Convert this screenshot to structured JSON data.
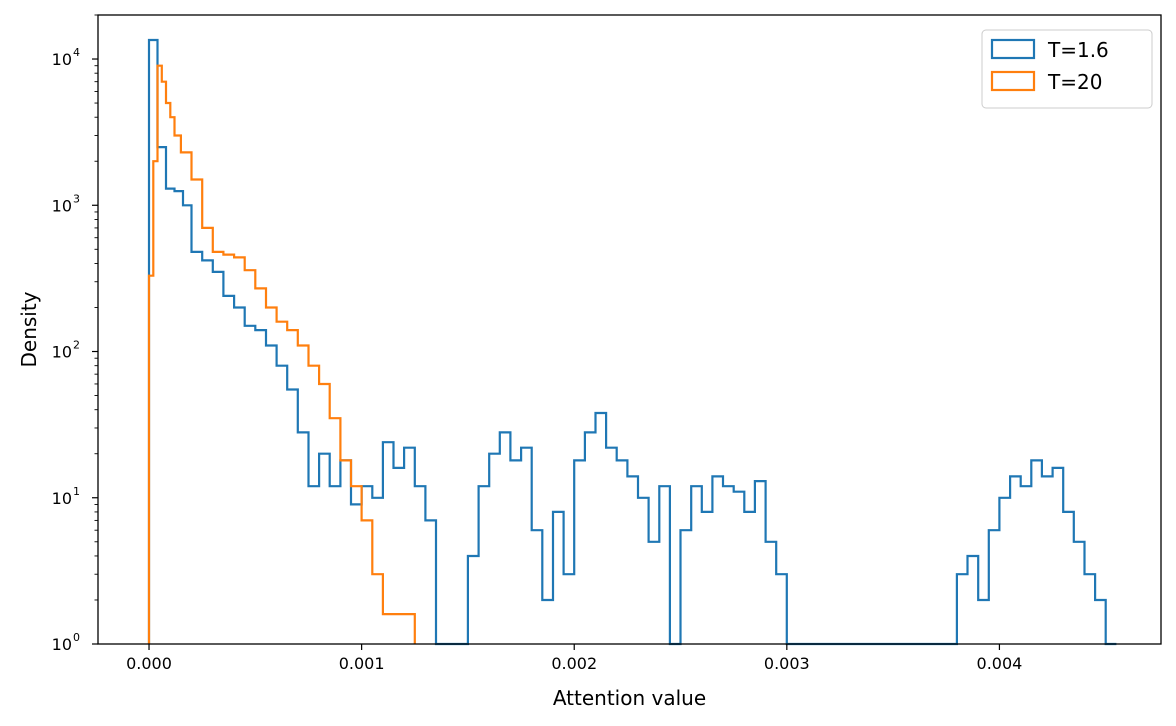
{
  "chart_data": {
    "type": "histogram",
    "xlabel": "Attention value",
    "ylabel": "Density",
    "xlim": [
      -0.00024,
      0.00476
    ],
    "ylim": [
      1,
      20000
    ],
    "y_scale": "log",
    "x_ticks": [
      0.0,
      0.001,
      0.002,
      0.003,
      0.004
    ],
    "x_tick_labels": [
      "0.000",
      "0.001",
      "0.002",
      "0.003",
      "0.004"
    ],
    "y_ticks": [
      1,
      10,
      100,
      1000,
      10000
    ],
    "y_tick_labels": [
      {
        "base": "10",
        "exp": "0"
      },
      {
        "base": "10",
        "exp": "1"
      },
      {
        "base": "10",
        "exp": "2"
      },
      {
        "base": "10",
        "exp": "3"
      },
      {
        "base": "10",
        "exp": "4"
      }
    ],
    "grid": false,
    "legend_position": "top-right",
    "series": [
      {
        "name": "T=1.6",
        "color": "#1f77b4",
        "x": [
          0.0,
          5e-05,
          0.0001,
          0.00015,
          0.0002,
          0.00025,
          0.0003,
          0.00035,
          0.0004,
          0.00045,
          0.0005,
          0.00055,
          0.0006,
          0.00065,
          0.0007,
          0.00075,
          0.0008,
          0.00085,
          0.0009,
          0.00095,
          0.001,
          0.00105,
          0.0011,
          0.00115,
          0.0012,
          0.00125,
          0.0013,
          0.00135,
          0.0014,
          0.00145,
          0.0015,
          0.00155,
          0.0016,
          0.00165,
          0.0017,
          0.00175,
          0.0018,
          0.00185,
          0.0019,
          0.00195,
          0.002,
          0.00205,
          0.0021,
          0.00215,
          0.0022,
          0.00225,
          0.0023,
          0.00235,
          0.0024,
          0.00245,
          0.0025,
          0.00255,
          0.0026,
          0.00265,
          0.0027,
          0.00275,
          0.0028,
          0.00285,
          0.0029,
          0.00295,
          0.003,
          0.00305,
          0.0031,
          0.00315,
          0.0032,
          0.00325,
          0.0033,
          0.00335,
          0.0034,
          0.00345,
          0.0035,
          0.00355,
          0.0036,
          0.00365,
          0.0037,
          0.00375,
          0.0038,
          0.00385,
          0.0039,
          0.00395,
          0.004,
          0.00405,
          0.0041,
          0.00415,
          0.0042,
          0.00425,
          0.0043,
          0.00435,
          0.0044,
          0.00445,
          0.0045,
          0.00455
        ],
        "density": [
          13000,
          2000,
          1200,
          450,
          400,
          300,
          250,
          160,
          130,
          110,
          80,
          60,
          40,
          22,
          15,
          15,
          12,
          10,
          12,
          15,
          11,
          18,
          22,
          18,
          14,
          8,
          1,
          1,
          1,
          1,
          1,
          1,
          18,
          28,
          20,
          12,
          10,
          8,
          6,
          8,
          22,
          30,
          25,
          18,
          16,
          10,
          8,
          6,
          8,
          7,
          8,
          10,
          12,
          14,
          13,
          10,
          7,
          5,
          3,
          1.5,
          1,
          1,
          1,
          1,
          1,
          1,
          1,
          1,
          1,
          1,
          1,
          1,
          1,
          1,
          1,
          1.8,
          3,
          5,
          7,
          10,
          12,
          14,
          15,
          14,
          12,
          8,
          5,
          3,
          1.7,
          1.5,
          1,
          1
        ],
        "points": [
          [
            0.0,
            1
          ],
          [
            0.0,
            13500
          ],
          [
            4e-05,
            13500
          ],
          [
            4e-05,
            2500
          ],
          [
            8e-05,
            1300
          ],
          [
            0.00012,
            1250
          ],
          [
            0.00016,
            1000
          ],
          [
            0.0002,
            480
          ],
          [
            0.00025,
            420
          ],
          [
            0.0003,
            350
          ],
          [
            0.00035,
            240
          ],
          [
            0.0004,
            200
          ],
          [
            0.00045,
            150
          ],
          [
            0.0005,
            140
          ],
          [
            0.00055,
            110
          ],
          [
            0.0006,
            80
          ],
          [
            0.00065,
            55
          ],
          [
            0.0007,
            28
          ],
          [
            0.00075,
            12
          ],
          [
            0.0008,
            20
          ],
          [
            0.00085,
            12
          ],
          [
            0.0009,
            18
          ],
          [
            0.00095,
            9
          ],
          [
            0.001,
            12
          ],
          [
            0.00105,
            10
          ],
          [
            0.0011,
            24
          ],
          [
            0.00115,
            16
          ],
          [
            0.0012,
            22
          ],
          [
            0.00125,
            12
          ],
          [
            0.0013,
            7
          ],
          [
            0.00135,
            1
          ],
          [
            0.00145,
            1
          ],
          [
            0.0015,
            4
          ],
          [
            0.00155,
            12
          ],
          [
            0.0016,
            20
          ],
          [
            0.00165,
            28
          ],
          [
            0.0017,
            18
          ],
          [
            0.00175,
            22
          ],
          [
            0.0018,
            6
          ],
          [
            0.00185,
            2
          ],
          [
            0.0019,
            8
          ],
          [
            0.00195,
            3
          ],
          [
            0.002,
            18
          ],
          [
            0.00205,
            28
          ],
          [
            0.0021,
            38
          ],
          [
            0.00215,
            22
          ],
          [
            0.0022,
            18
          ],
          [
            0.00225,
            14
          ],
          [
            0.0023,
            10
          ],
          [
            0.00235,
            5
          ],
          [
            0.0024,
            12
          ],
          [
            0.00245,
            1
          ],
          [
            0.0025,
            6
          ],
          [
            0.00255,
            12
          ],
          [
            0.0026,
            8
          ],
          [
            0.00265,
            14
          ],
          [
            0.0027,
            12
          ],
          [
            0.00275,
            11
          ],
          [
            0.0028,
            8
          ],
          [
            0.00285,
            13
          ],
          [
            0.0029,
            5
          ],
          [
            0.00295,
            3
          ],
          [
            0.003,
            1
          ],
          [
            0.00305,
            1
          ],
          [
            0.0031,
            1
          ],
          [
            0.0037,
            1
          ],
          [
            0.00375,
            1
          ],
          [
            0.0038,
            3
          ],
          [
            0.00385,
            4
          ],
          [
            0.0039,
            2
          ],
          [
            0.00395,
            6
          ],
          [
            0.004,
            10
          ],
          [
            0.00405,
            14
          ],
          [
            0.0041,
            12
          ],
          [
            0.00415,
            18
          ],
          [
            0.0042,
            14
          ],
          [
            0.00425,
            16
          ],
          [
            0.0043,
            8
          ],
          [
            0.00435,
            5
          ],
          [
            0.0044,
            3
          ],
          [
            0.00445,
            2
          ],
          [
            0.0045,
            1
          ],
          [
            0.00455,
            1
          ]
        ]
      },
      {
        "name": "T=20",
        "color": "#ff7f0e",
        "x": [
          0.0,
          5e-05,
          0.0001,
          0.00015,
          0.0002,
          0.00025,
          0.0003,
          0.00035,
          0.0004,
          0.00045,
          0.0005,
          0.00055,
          0.0006,
          0.00065,
          0.0007,
          0.00075,
          0.0008,
          0.00085,
          0.0009,
          0.00095,
          0.001,
          0.00105,
          0.0011,
          0.00115,
          0.0012
        ],
        "density": [
          330,
          7500,
          4000,
          2500,
          1500,
          700,
          450,
          420,
          380,
          280,
          200,
          160,
          140,
          110,
          80,
          60,
          40,
          20,
          12,
          7,
          3,
          1.6,
          1.6,
          1.6,
          1.6
        ],
        "points": [
          [
            0.0,
            1
          ],
          [
            0.0,
            330
          ],
          [
            2e-05,
            330
          ],
          [
            2e-05,
            2000
          ],
          [
            4e-05,
            9000
          ],
          [
            6e-05,
            7000
          ],
          [
            8e-05,
            5000
          ],
          [
            0.0001,
            4000
          ],
          [
            0.00012,
            3000
          ],
          [
            0.00015,
            2300
          ],
          [
            0.0002,
            1500
          ],
          [
            0.00025,
            700
          ],
          [
            0.0003,
            480
          ],
          [
            0.00035,
            460
          ],
          [
            0.0004,
            440
          ],
          [
            0.00045,
            360
          ],
          [
            0.0005,
            270
          ],
          [
            0.00055,
            200
          ],
          [
            0.0006,
            160
          ],
          [
            0.00065,
            140
          ],
          [
            0.0007,
            110
          ],
          [
            0.00075,
            80
          ],
          [
            0.0008,
            60
          ],
          [
            0.00085,
            35
          ],
          [
            0.0009,
            18
          ],
          [
            0.00095,
            12
          ],
          [
            0.001,
            7
          ],
          [
            0.00105,
            3
          ],
          [
            0.0011,
            1.6
          ],
          [
            0.00115,
            1.6
          ],
          [
            0.0012,
            1.6
          ],
          [
            0.00125,
            1
          ]
        ]
      }
    ]
  }
}
